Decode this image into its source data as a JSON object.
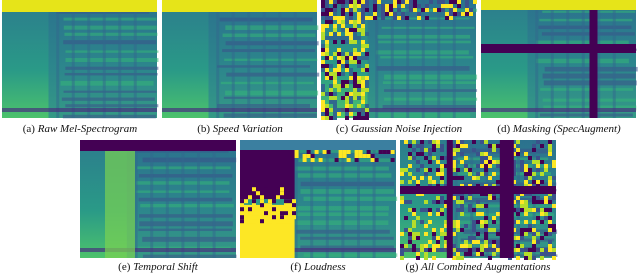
{
  "panels": [
    {
      "label": "(a)",
      "caption": "Raw Mel-Spectrogram"
    },
    {
      "label": "(b)",
      "caption": "Speed Variation"
    },
    {
      "label": "(c)",
      "caption": "Gaussian Noise Injection"
    },
    {
      "label": "(d)",
      "caption": "Masking (SpecAugment)"
    },
    {
      "label": "(e)",
      "caption": "Temporal Shift"
    },
    {
      "label": "(f)",
      "caption": "Loudness"
    },
    {
      "label": "(g)",
      "caption": "All Combined Augmentations"
    }
  ]
}
